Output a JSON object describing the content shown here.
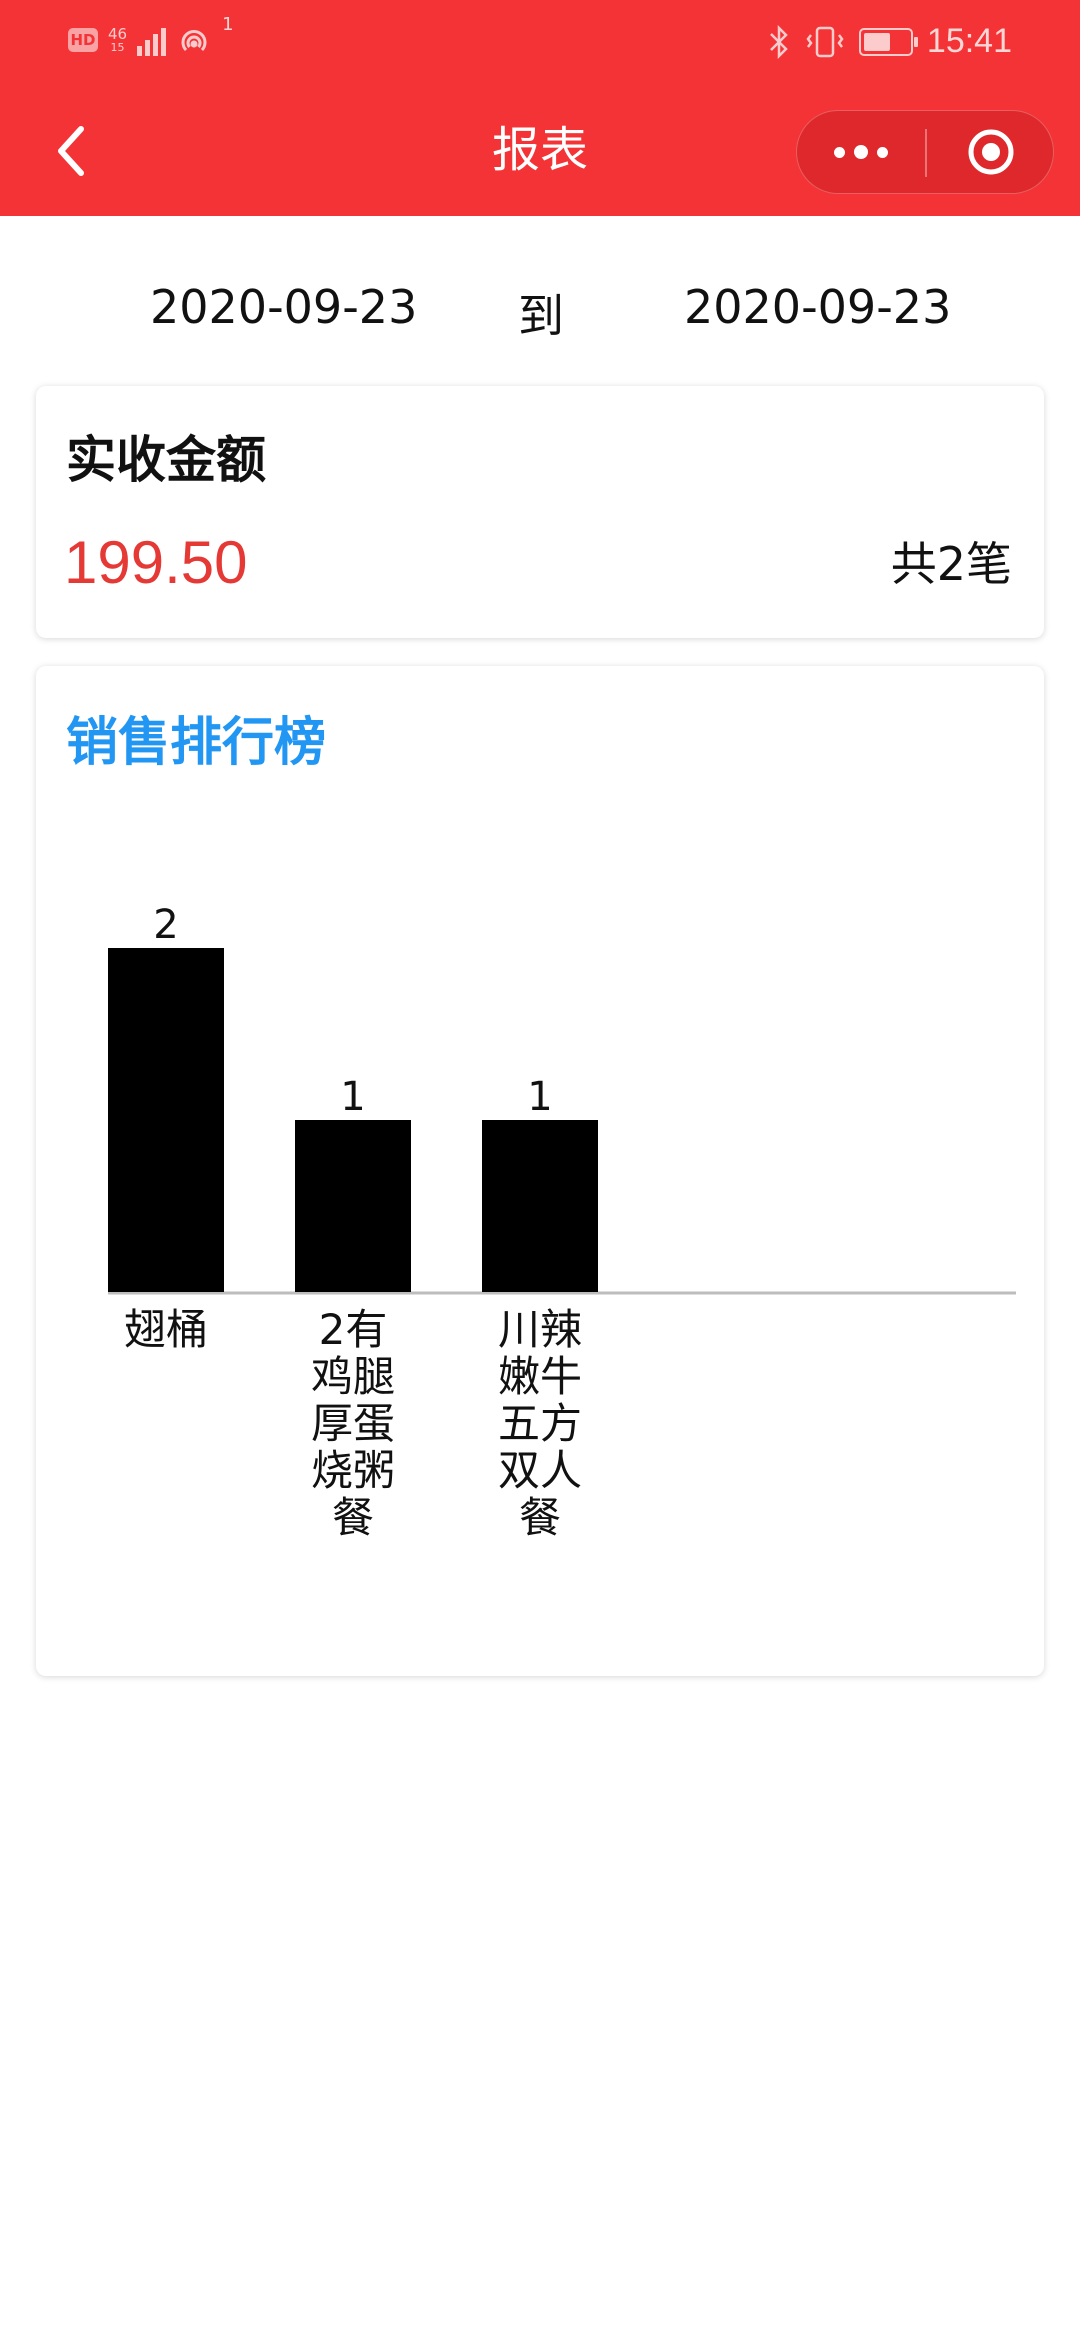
{
  "status_bar": {
    "hd": "HD",
    "network": "46",
    "network_sub": "15",
    "hotspot_count": "1",
    "time": "15:41",
    "battery_level": 0.6
  },
  "nav": {
    "title": "报表",
    "back_icon": "chevron-left-icon",
    "more_icon": "more-dots-icon",
    "close_icon": "target-circle-icon"
  },
  "date_range": {
    "start": "2020-09-23",
    "separator": "到",
    "end": "2020-09-23"
  },
  "summary": {
    "title": "实收金额",
    "amount": "199.50",
    "count_text": "共2笔"
  },
  "ranking": {
    "title": "销售排行榜"
  },
  "colors": {
    "header": "#f43336",
    "amount": "#e53935",
    "ranking_title": "#2196f3",
    "bar": "#000000"
  },
  "chart_data": {
    "type": "bar",
    "categories": [
      "翅桶",
      "2有鸡腿厚蛋烧粥餐",
      "川辣嫩牛五方双人餐"
    ],
    "category_lines": [
      [
        "翅桶"
      ],
      [
        "2有",
        "鸡腿",
        "厚蛋",
        "烧粥",
        "餐"
      ],
      [
        "川辣",
        "嫩牛",
        "五方",
        "双人",
        "餐"
      ]
    ],
    "values": [
      2,
      1,
      1
    ],
    "ylim": [
      0,
      2
    ],
    "grid": false,
    "legend": "none",
    "title": "",
    "xlabel": "",
    "ylabel": ""
  }
}
